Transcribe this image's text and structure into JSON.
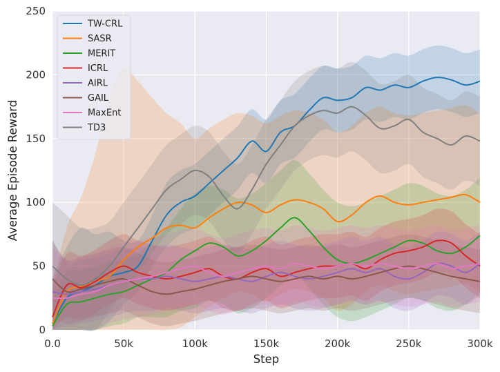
{
  "chart_data": {
    "type": "line",
    "title": "",
    "xlabel": "Step",
    "ylabel": "Average Episode Reward",
    "xlim": [
      0,
      300000
    ],
    "ylim": [
      0,
      250
    ],
    "xticks": [
      0,
      50000,
      100000,
      150000,
      200000,
      250000,
      300000
    ],
    "xtick_labels": [
      "0.0",
      "50k",
      "100k",
      "150k",
      "200k",
      "250k",
      "300k"
    ],
    "yticks": [
      0,
      50,
      100,
      150,
      200,
      250
    ],
    "ytick_labels": [
      "0",
      "50",
      "100",
      "150",
      "200",
      "250"
    ],
    "grid": true,
    "legend": "top-left",
    "x": [
      0,
      10000,
      20000,
      30000,
      40000,
      50000,
      60000,
      70000,
      80000,
      90000,
      100000,
      110000,
      120000,
      130000,
      140000,
      150000,
      160000,
      170000,
      180000,
      190000,
      200000,
      210000,
      220000,
      230000,
      240000,
      250000,
      260000,
      270000,
      280000,
      290000,
      300000
    ],
    "series": [
      {
        "name": "TW-CRL",
        "color": "#1f77b4",
        "values": [
          5,
          25,
          30,
          35,
          42,
          45,
          50,
          70,
          90,
          100,
          105,
          115,
          125,
          135,
          148,
          140,
          155,
          160,
          172,
          182,
          180,
          182,
          190,
          188,
          192,
          190,
          195,
          198,
          196,
          192,
          195
        ],
        "band": [
          35,
          40,
          50,
          40,
          35,
          25,
          20,
          20,
          25,
          25,
          25,
          25,
          25,
          25,
          25,
          25,
          25,
          25,
          25,
          25,
          25,
          25,
          25,
          25,
          25,
          25,
          25,
          25,
          25,
          25,
          25
        ]
      },
      {
        "name": "SASR",
        "color": "#ff7f0e",
        "values": [
          5,
          30,
          34,
          38,
          42,
          55,
          65,
          72,
          80,
          82,
          80,
          88,
          95,
          100,
          98,
          92,
          98,
          102,
          100,
          95,
          85,
          90,
          100,
          105,
          100,
          98,
          100,
          102,
          104,
          106,
          100
        ],
        "band": [
          30,
          50,
          70,
          100,
          140,
          150,
          130,
          110,
          90,
          80,
          70,
          70,
          70,
          70,
          70,
          70,
          70,
          70,
          70,
          70,
          70,
          70,
          70,
          70,
          70,
          70,
          70,
          70,
          70,
          70,
          70
        ]
      },
      {
        "name": "MERIT",
        "color": "#2ca02c",
        "values": [
          3,
          20,
          22,
          25,
          28,
          30,
          35,
          40,
          45,
          55,
          62,
          68,
          65,
          58,
          62,
          70,
          80,
          88,
          78,
          65,
          55,
          52,
          55,
          60,
          65,
          70,
          68,
          62,
          60,
          65,
          74
        ],
        "band": [
          20,
          25,
          25,
          25,
          25,
          25,
          25,
          30,
          35,
          40,
          45,
          45,
          45,
          45,
          45,
          45,
          45,
          45,
          45,
          45,
          45,
          45,
          45,
          45,
          45,
          45,
          45,
          45,
          45,
          45,
          45
        ]
      },
      {
        "name": "ICRL",
        "color": "#d62728",
        "values": [
          10,
          35,
          33,
          38,
          45,
          50,
          45,
          42,
          40,
          42,
          45,
          48,
          42,
          40,
          45,
          48,
          42,
          45,
          48,
          50,
          50,
          52,
          48,
          55,
          60,
          62,
          65,
          70,
          68,
          58,
          50
        ],
        "band": [
          25,
          25,
          25,
          25,
          25,
          25,
          25,
          25,
          25,
          25,
          25,
          25,
          25,
          25,
          25,
          25,
          25,
          25,
          25,
          25,
          25,
          25,
          25,
          25,
          25,
          25,
          25,
          25,
          25,
          25,
          25
        ]
      },
      {
        "name": "AIRL",
        "color": "#9467bd",
        "values": [
          30,
          28,
          30,
          32,
          35,
          38,
          40,
          40,
          42,
          40,
          38,
          40,
          42,
          40,
          38,
          42,
          45,
          42,
          40,
          42,
          45,
          48,
          45,
          48,
          42,
          40,
          45,
          52,
          50,
          45,
          52
        ],
        "band": [
          40,
          25,
          25,
          25,
          25,
          25,
          25,
          25,
          25,
          25,
          25,
          25,
          25,
          25,
          25,
          25,
          25,
          25,
          25,
          25,
          25,
          25,
          25,
          25,
          25,
          25,
          25,
          25,
          25,
          25,
          25
        ]
      },
      {
        "name": "GAIL",
        "color": "#8c564b",
        "values": [
          40,
          30,
          32,
          35,
          38,
          40,
          35,
          30,
          28,
          30,
          32,
          35,
          38,
          40,
          42,
          40,
          38,
          40,
          42,
          40,
          42,
          40,
          42,
          45,
          48,
          50,
          48,
          45,
          42,
          40,
          38
        ],
        "band": [
          30,
          25,
          25,
          25,
          25,
          25,
          25,
          25,
          25,
          25,
          25,
          25,
          25,
          25,
          25,
          25,
          25,
          25,
          25,
          25,
          25,
          25,
          25,
          25,
          25,
          25,
          25,
          25,
          25,
          25,
          25
        ]
      },
      {
        "name": "MaxEnt",
        "color": "#e377c2",
        "values": [
          25,
          25,
          28,
          30,
          35,
          38,
          40,
          42,
          45,
          48,
          50,
          45,
          42,
          45,
          48,
          50,
          48,
          52,
          50,
          48,
          50,
          52,
          50,
          52,
          50,
          48,
          50,
          52,
          48,
          50,
          52
        ],
        "band": [
          40,
          30,
          30,
          30,
          30,
          30,
          30,
          30,
          30,
          30,
          30,
          30,
          30,
          30,
          30,
          30,
          30,
          30,
          30,
          30,
          30,
          30,
          30,
          30,
          30,
          30,
          30,
          30,
          30,
          30,
          30
        ]
      },
      {
        "name": "TD3",
        "color": "#7f7f7f",
        "values": [
          50,
          40,
          35,
          40,
          50,
          65,
          80,
          95,
          110,
          118,
          125,
          120,
          105,
          95,
          110,
          130,
          145,
          160,
          168,
          172,
          170,
          175,
          168,
          158,
          160,
          165,
          155,
          150,
          145,
          152,
          148
        ],
        "band": [
          50,
          50,
          45,
          40,
          35,
          35,
          35,
          35,
          35,
          35,
          35,
          35,
          35,
          35,
          35,
          35,
          35,
          35,
          35,
          35,
          35,
          35,
          35,
          35,
          35,
          35,
          35,
          35,
          35,
          35,
          35
        ]
      }
    ]
  }
}
